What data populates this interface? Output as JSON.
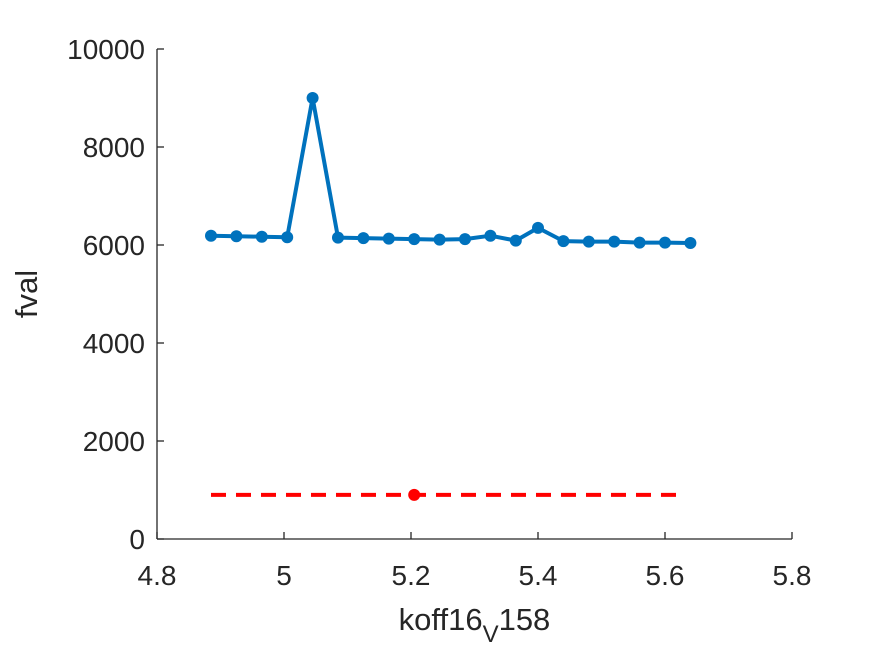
{
  "chart_data": {
    "type": "line",
    "title": "",
    "xlabel": "koff16",
    "xlabel_sub": "V",
    "xlabel_suffix": "158",
    "ylabel": "fval",
    "xlim": [
      4.8,
      5.8
    ],
    "ylim": [
      0,
      10000
    ],
    "xticks": [
      "4.8",
      "5",
      "5.2",
      "5.4",
      "5.6",
      "5.8"
    ],
    "yticks": [
      "0",
      "2000",
      "4000",
      "6000",
      "8000",
      "10000"
    ],
    "grid": false,
    "series": [
      {
        "color": "#0072BD",
        "style": "solid",
        "marker": "circle",
        "x": [
          4.885,
          4.925,
          4.965,
          5.005,
          5.045,
          5.085,
          5.125,
          5.165,
          5.205,
          5.245,
          5.285,
          5.325,
          5.365,
          5.4,
          5.44,
          5.48,
          5.52,
          5.56,
          5.6,
          5.64
        ],
        "y": [
          6190,
          6180,
          6170,
          6160,
          9000,
          6150,
          6140,
          6130,
          6120,
          6110,
          6120,
          6190,
          6090,
          6350,
          6080,
          6070,
          6070,
          6050,
          6050,
          6040
        ]
      },
      {
        "color": "#FF0000",
        "style": "dashed",
        "marker": "none",
        "x": [
          4.885,
          5.62
        ],
        "y": [
          900,
          900
        ]
      },
      {
        "color": "#FF0000",
        "style": "none",
        "marker": "circle",
        "x": [
          5.205
        ],
        "y": [
          900
        ]
      }
    ]
  }
}
